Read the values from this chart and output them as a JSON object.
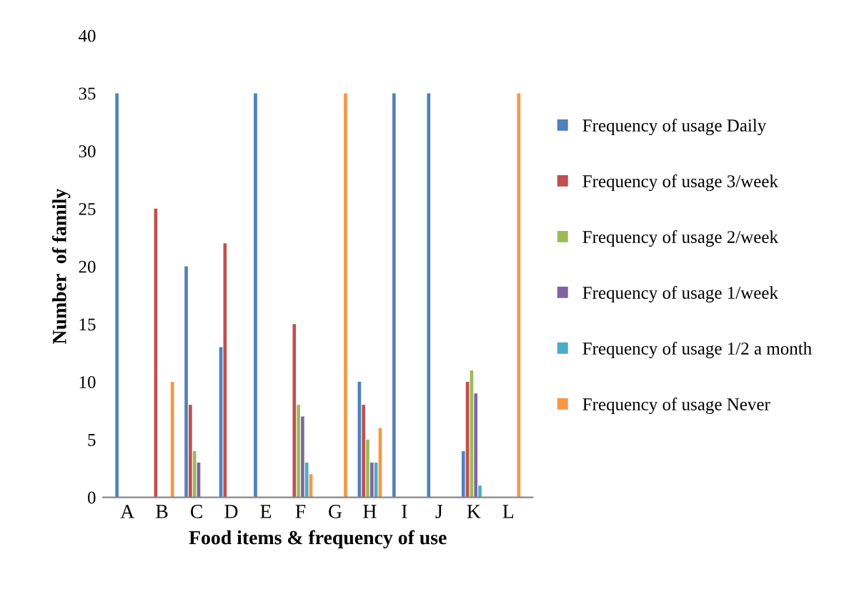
{
  "chart_data": {
    "type": "bar",
    "xlabel": "Food items & frequency of use",
    "ylabel": "Number  of family",
    "categories": [
      "A",
      "B",
      "C",
      "D",
      "E",
      "F",
      "G",
      "H",
      "I",
      "J",
      "K",
      "L"
    ],
    "series": [
      {
        "name": "Frequency of usage Daily",
        "color": "#4f81bd",
        "values": [
          35,
          0,
          20,
          13,
          35,
          0,
          0,
          10,
          35,
          35,
          4,
          0
        ]
      },
      {
        "name": "Frequency of usage 3/week",
        "color": "#c0504d",
        "values": [
          0,
          25,
          8,
          22,
          0,
          15,
          0,
          8,
          0,
          0,
          10,
          0
        ]
      },
      {
        "name": "Frequency of usage 2/week",
        "color": "#9bbb59",
        "values": [
          0,
          0,
          4,
          0,
          0,
          8,
          0,
          5,
          0,
          0,
          11,
          0
        ]
      },
      {
        "name": "Frequency of usage 1/week",
        "color": "#8064a2",
        "values": [
          0,
          0,
          3,
          0,
          0,
          7,
          0,
          3,
          0,
          0,
          9,
          0
        ]
      },
      {
        "name": "Frequency of usage 1/2 a month",
        "color": "#4bacc6",
        "values": [
          0,
          0,
          0,
          0,
          0,
          3,
          0,
          3,
          0,
          0,
          1,
          0
        ]
      },
      {
        "name": "Frequency of usage Never",
        "color": "#f79646",
        "values": [
          0,
          10,
          0,
          0,
          0,
          2,
          35,
          6,
          0,
          0,
          0,
          35
        ]
      }
    ],
    "ylim": [
      0,
      40
    ],
    "yticks": [
      0,
      5,
      10,
      15,
      20,
      25,
      30,
      35,
      40
    ],
    "grid": false,
    "legend": "right"
  }
}
